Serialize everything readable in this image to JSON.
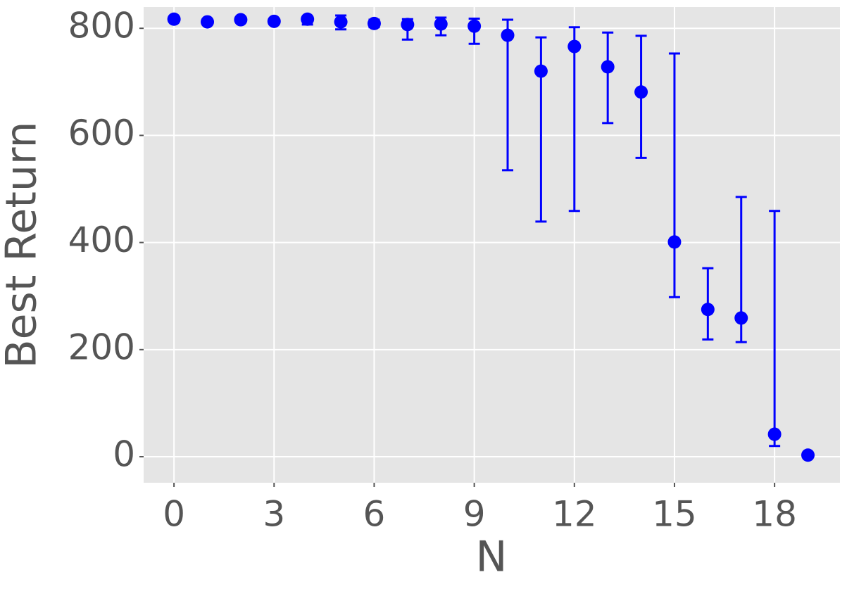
{
  "chart_data": {
    "type": "errorbar",
    "x_label": "N",
    "y_label": "Best Return",
    "x": [
      0,
      1,
      2,
      3,
      4,
      5,
      6,
      7,
      8,
      9,
      10,
      11,
      12,
      13,
      14,
      15,
      16,
      17,
      18,
      19
    ],
    "values": [
      817,
      812,
      816,
      813,
      817,
      812,
      809,
      807,
      808,
      804,
      787,
      720,
      766,
      728,
      681,
      401,
      275,
      259,
      42,
      3
    ],
    "lower": [
      null,
      null,
      null,
      null,
      807,
      798,
      802,
      779,
      787,
      771,
      535,
      439,
      459,
      623,
      558,
      298,
      219,
      214,
      20,
      null
    ],
    "upper": [
      null,
      null,
      null,
      null,
      821,
      824,
      816,
      817,
      820,
      818,
      816,
      783,
      802,
      792,
      786,
      753,
      352,
      485,
      459,
      null
    ],
    "color": "#0000ff",
    "xlim": [
      -0.91,
      19.96
    ],
    "ylim": [
      -48.6,
      839.7
    ],
    "xticks": [
      0,
      3,
      6,
      9,
      12,
      15,
      18
    ],
    "yticks": [
      0,
      200,
      400,
      600,
      800
    ],
    "grid": true
  }
}
